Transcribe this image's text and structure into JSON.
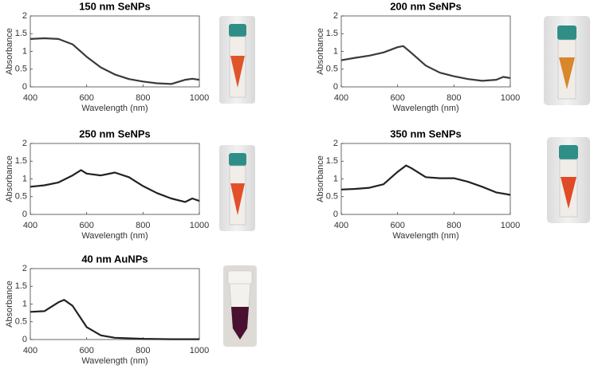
{
  "chart_data": [
    {
      "type": "line",
      "title": "150 nm SeNPs",
      "xlabel": "Wavelength (nm)",
      "ylabel": "Absorbance",
      "x": [
        400,
        450,
        500,
        550,
        600,
        650,
        700,
        750,
        800,
        850,
        900,
        950,
        975,
        1000
      ],
      "values": [
        1.35,
        1.37,
        1.35,
        1.2,
        0.85,
        0.55,
        0.35,
        0.22,
        0.15,
        0.1,
        0.08,
        0.2,
        0.23,
        0.2
      ],
      "color": "#3a3a3a",
      "xlim": [
        400,
        1000
      ],
      "ylim": [
        0,
        2
      ],
      "xticks": [
        400,
        600,
        800,
        1000
      ],
      "yticks": [
        0,
        0.5,
        1,
        1.5,
        2
      ]
    },
    {
      "type": "line",
      "title": "200 nm SeNPs",
      "xlabel": "Wavelength (nm)",
      "ylabel": "Absorbance",
      "x": [
        400,
        450,
        500,
        550,
        600,
        620,
        650,
        700,
        750,
        800,
        850,
        900,
        950,
        975,
        1000
      ],
      "values": [
        0.75,
        0.82,
        0.88,
        0.97,
        1.12,
        1.15,
        0.95,
        0.6,
        0.4,
        0.3,
        0.22,
        0.17,
        0.2,
        0.28,
        0.25
      ],
      "color": "#3a3a3a",
      "xlim": [
        400,
        1000
      ],
      "ylim": [
        0,
        2
      ],
      "xticks": [
        400,
        600,
        800,
        1000
      ],
      "yticks": [
        0,
        0.5,
        1,
        1.5,
        2
      ]
    },
    {
      "type": "line",
      "title": "250 nm SeNPs",
      "xlabel": "Wavelength (nm)",
      "ylabel": "Absorbance",
      "x": [
        400,
        450,
        500,
        550,
        580,
        600,
        650,
        700,
        750,
        800,
        850,
        900,
        950,
        975,
        1000
      ],
      "values": [
        0.78,
        0.82,
        0.9,
        1.1,
        1.25,
        1.15,
        1.1,
        1.18,
        1.05,
        0.8,
        0.6,
        0.45,
        0.35,
        0.45,
        0.38
      ],
      "color": "#222222",
      "xlim": [
        400,
        1000
      ],
      "ylim": [
        0,
        2
      ],
      "xticks": [
        400,
        600,
        800,
        1000
      ],
      "yticks": [
        0,
        0.5,
        1,
        1.5,
        2
      ]
    },
    {
      "type": "line",
      "title": "350 nm SeNPs",
      "xlabel": "Wavelength (nm)",
      "ylabel": "Absorbance",
      "x": [
        400,
        450,
        500,
        550,
        600,
        630,
        650,
        700,
        750,
        800,
        850,
        900,
        950,
        1000
      ],
      "values": [
        0.7,
        0.72,
        0.75,
        0.85,
        1.2,
        1.38,
        1.3,
        1.05,
        1.02,
        1.02,
        0.92,
        0.78,
        0.62,
        0.55
      ],
      "color": "#222222",
      "xlim": [
        400,
        1000
      ],
      "ylim": [
        0,
        2
      ],
      "xticks": [
        400,
        600,
        800,
        1000
      ],
      "yticks": [
        0,
        0.5,
        1,
        1.5,
        2
      ]
    },
    {
      "type": "line",
      "title": "40 nm AuNPs",
      "xlabel": "Wavelength (nm)",
      "ylabel": "Absorbance",
      "x": [
        400,
        450,
        500,
        520,
        550,
        600,
        650,
        700,
        800,
        900,
        1000
      ],
      "values": [
        0.78,
        0.8,
        1.05,
        1.12,
        0.95,
        0.35,
        0.12,
        0.05,
        0.02,
        0.01,
        0.01
      ],
      "color": "#222222",
      "xlim": [
        400,
        1000
      ],
      "ylim": [
        0,
        2
      ],
      "xticks": [
        400,
        600,
        800,
        1000
      ],
      "yticks": [
        0,
        0.5,
        1,
        1.5,
        2
      ]
    }
  ]
}
